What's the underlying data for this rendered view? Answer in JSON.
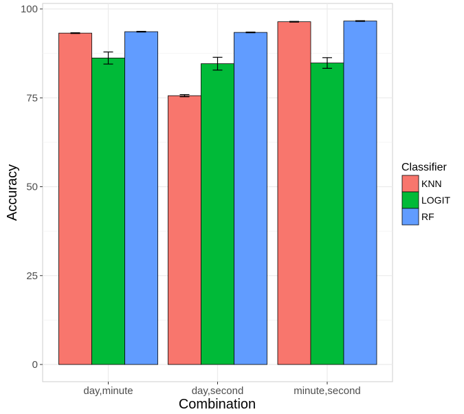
{
  "chart_data": {
    "type": "bar",
    "title": "",
    "xlabel": "Combination",
    "ylabel": "Accuracy",
    "categories": [
      "day,minute",
      "day,second",
      "minute,second"
    ],
    "ylim": [
      0,
      100
    ],
    "yticks": [
      0,
      25,
      50,
      75,
      100
    ],
    "grid": true,
    "legend": {
      "title": "Classifier",
      "placement": "right"
    },
    "series": [
      {
        "name": "KNN",
        "color": "#F8766D",
        "values": [
          93.2,
          75.6,
          96.4
        ],
        "errors": [
          0.1,
          0.3,
          0.1
        ]
      },
      {
        "name": "LOGIT",
        "color": "#00BA38",
        "values": [
          86.2,
          84.6,
          84.8
        ],
        "errors": [
          1.7,
          1.8,
          1.5
        ]
      },
      {
        "name": "RF",
        "color": "#619CFF",
        "values": [
          93.6,
          93.4,
          96.6
        ],
        "errors": [
          0.1,
          0.1,
          0.1
        ]
      }
    ]
  }
}
